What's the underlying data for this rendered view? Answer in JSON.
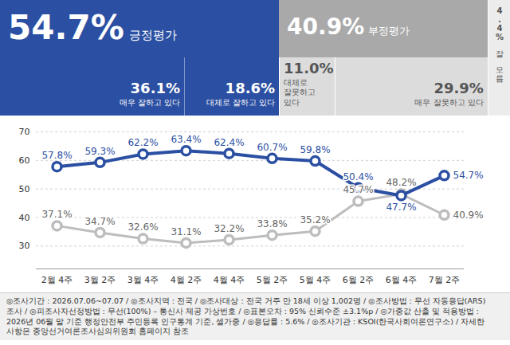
{
  "header": {
    "positive": {
      "total": {
        "value": 54.7,
        "label": "54.7%"
      },
      "title": "긍정평가",
      "parts": [
        {
          "value": 36.1,
          "label": "36.1%",
          "text": "매우 잘하고 있다"
        },
        {
          "value": 18.6,
          "label": "18.6%",
          "text": "대체로 잘하고 있다"
        }
      ]
    },
    "negative": {
      "total": {
        "value": 40.9,
        "label": "40.9%"
      },
      "title": "부정평가",
      "parts": [
        {
          "value": 11.0,
          "label": "11.0%",
          "text": "대체로 잘못하고 있다"
        },
        {
          "value": 29.9,
          "label": "29.9%",
          "text": "매우 잘못하고 있다"
        }
      ]
    },
    "unknown": {
      "value": 4.4,
      "label": "4.4%",
      "text": "잘 모름"
    }
  },
  "chart_data": {
    "type": "line",
    "categories": [
      "2월 4주",
      "3월 2주",
      "3월 4주",
      "4월 2주",
      "4월 4주",
      "5월 2주",
      "5월 4주",
      "6월 2주",
      "6월 4주",
      "7월 2주"
    ],
    "series": [
      {
        "name": "긍정평가",
        "color": "#2b4fa2",
        "marker": "circle",
        "values": [
          57.8,
          59.3,
          62.2,
          63.4,
          62.4,
          60.7,
          59.8,
          50.4,
          47.7,
          54.7
        ],
        "value_labels": [
          "57.8%",
          "59.3%",
          "62.2%",
          "63.4%",
          "62.4%",
          "60.7%",
          "59.8%",
          "50.4%",
          "47.7%",
          "54.7%"
        ]
      },
      {
        "name": "부정평가",
        "color": "#bdbdbd",
        "marker": "circle",
        "values": [
          37.1,
          34.7,
          32.6,
          31.1,
          32.2,
          33.8,
          35.2,
          45.7,
          48.2,
          40.9
        ],
        "value_labels": [
          "37.1%",
          "34.7%",
          "32.6%",
          "31.1%",
          "32.2%",
          "33.8%",
          "35.2%",
          "45.7%",
          "48.2%",
          "40.9%"
        ]
      }
    ],
    "ylim": [
      22,
      70
    ],
    "yticks": [
      30,
      40,
      50,
      60,
      70
    ],
    "grid": true,
    "data_labels": true
  },
  "footer": "◎조사기간 : 2026.07.06~07.07 / ◎조사지역 : 전국 / ◎조사대상 : 전국 거주 만 18세 이상 1,002명 / ◎조사방법 : 무선 자동응답(ARS) 조사 / ◎피조사자선정방법 : 무선(100%) – 통신사 제공 가상번호 / ◎표본오차 : 95% 신뢰수준 ±3.1%p / ◎가중값 산출 및 적용방법 : 2026년 06월 말 기준 행정안전부 주민등록 인구통계 기준, 셀가중 / ◎응답률 : 5.6% / ◎조사기관 : KSOI(한국사회여론연구소) / 자세한 사항은 중앙선거여론조사심의위원회 홈페이지 참조"
}
